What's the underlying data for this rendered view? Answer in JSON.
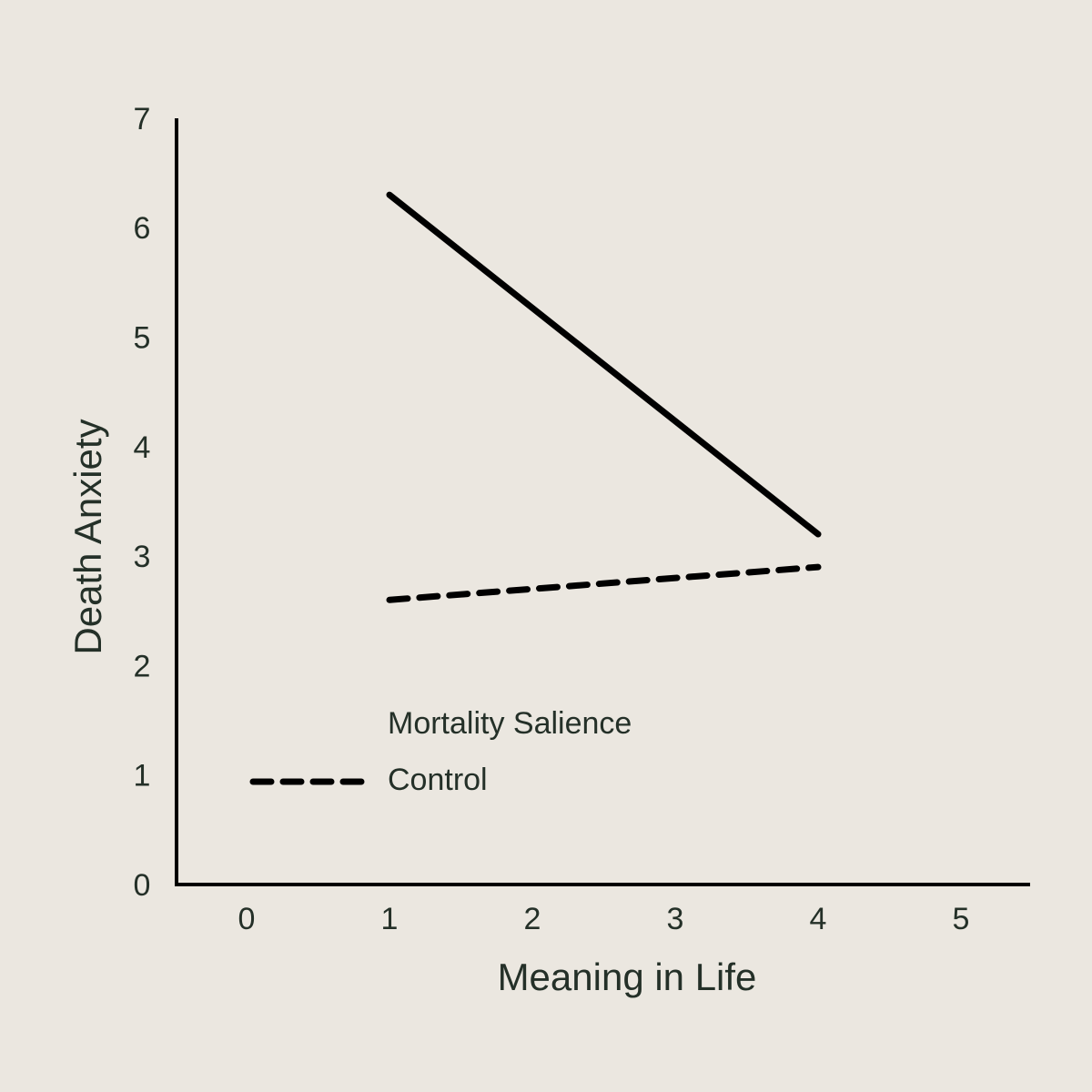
{
  "chart_data": {
    "type": "line",
    "title": "",
    "xlabel": "Meaning in Life",
    "ylabel": "Death Anxiety",
    "x_ticks": [
      0,
      1,
      2,
      3,
      4,
      5
    ],
    "y_ticks": [
      0,
      1,
      2,
      3,
      4,
      5,
      6,
      7
    ],
    "xlim": [
      -0.5,
      5.5
    ],
    "ylim": [
      0,
      7
    ],
    "grid": false,
    "legend_position": "bottom-left",
    "series": [
      {
        "name": "Mortality Salience",
        "style": "solid",
        "x": [
          1,
          4
        ],
        "y": [
          6.3,
          3.2
        ]
      },
      {
        "name": "Control",
        "style": "dashed",
        "x": [
          1,
          4
        ],
        "y": [
          2.6,
          2.9
        ]
      }
    ]
  },
  "colors": {
    "background": "#ebe7e0",
    "ink": "#000000",
    "text": "#243028"
  }
}
